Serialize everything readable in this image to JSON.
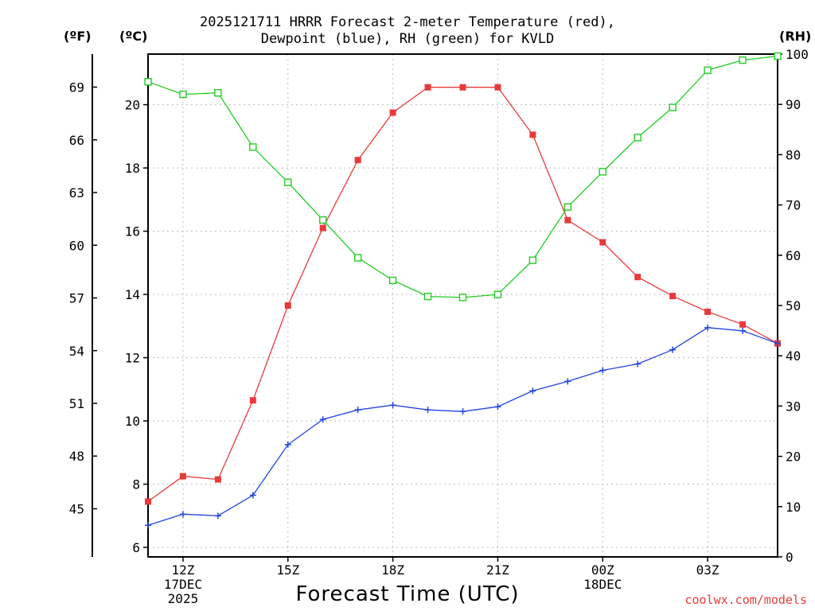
{
  "chart_data": {
    "type": "line",
    "title_lines": [
      "2025121711 HRRR Forecast 2-meter Temperature (red),",
      "Dewpoint (blue), RH (green) for KVLD"
    ],
    "unit_labels": {
      "fahrenheit": "(ºF)",
      "celsius": "(ºC)",
      "rh": "(RH)"
    },
    "xlabel": "Forecast Time (UTC)",
    "credit": "coolwx.com/models",
    "x_hours": [
      11,
      12,
      13,
      14,
      15,
      16,
      17,
      18,
      19,
      20,
      21,
      22,
      23,
      24,
      25,
      26,
      27,
      28,
      29
    ],
    "xlim": [
      11,
      29
    ],
    "x_ticks": [
      {
        "hour": 12,
        "lines": [
          "12Z",
          "17DEC",
          "2025"
        ]
      },
      {
        "hour": 15,
        "lines": [
          "15Z"
        ]
      },
      {
        "hour": 18,
        "lines": [
          "18Z"
        ]
      },
      {
        "hour": 21,
        "lines": [
          "21Z"
        ]
      },
      {
        "hour": 24,
        "lines": [
          "00Z",
          "18DEC"
        ]
      },
      {
        "hour": 27,
        "lines": [
          "03Z"
        ]
      }
    ],
    "celsius_axis": {
      "range": [
        5.7,
        21.6
      ],
      "ticks": [
        "6",
        "8",
        "10",
        "12",
        "14",
        "16",
        "18",
        "20"
      ]
    },
    "fahrenheit_axis": {
      "ticks": [
        "45",
        "48",
        "51",
        "54",
        "57",
        "60",
        "63",
        "66",
        "69"
      ]
    },
    "rh_axis": {
      "range": [
        0,
        100
      ],
      "ticks": [
        "0",
        "10",
        "20",
        "30",
        "40",
        "50",
        "60",
        "70",
        "80",
        "90",
        "100"
      ]
    },
    "series": [
      {
        "name": "Temperature",
        "unit": "C",
        "color": "#e83a3a",
        "marker": "filled-square",
        "values": [
          7.45,
          8.25,
          8.15,
          10.65,
          13.65,
          16.1,
          18.25,
          19.75,
          20.55,
          20.55,
          20.55,
          19.05,
          16.35,
          15.65,
          14.55,
          13.95,
          13.45,
          13.05,
          12.45
        ]
      },
      {
        "name": "Dewpoint",
        "unit": "C",
        "color": "#2244e0",
        "marker": "plus",
        "values": [
          6.7,
          7.05,
          7.0,
          7.65,
          9.25,
          10.05,
          10.35,
          10.5,
          10.35,
          10.3,
          10.45,
          10.95,
          11.25,
          11.6,
          11.8,
          12.25,
          12.95,
          12.85,
          12.45
        ]
      },
      {
        "name": "RH",
        "unit": "%",
        "color": "#22cc22",
        "marker": "open-square",
        "values": [
          94.5,
          92.0,
          92.3,
          81.5,
          74.5,
          67.0,
          59.5,
          55.0,
          51.8,
          51.6,
          52.2,
          59.0,
          69.6,
          76.6,
          83.4,
          89.4,
          96.8,
          98.8,
          99.6
        ]
      }
    ]
  }
}
